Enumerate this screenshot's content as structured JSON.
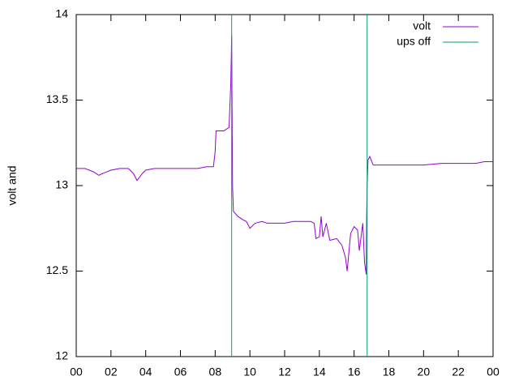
{
  "chart_data": {
    "type": "line",
    "ylabel": "volt and",
    "xlim": [
      0,
      24
    ],
    "xticks": [
      {
        "value": 0,
        "label": "00"
      },
      {
        "value": 2,
        "label": "02"
      },
      {
        "value": 4,
        "label": "04"
      },
      {
        "value": 6,
        "label": "06"
      },
      {
        "value": 8,
        "label": "08"
      },
      10,
      12,
      14,
      16,
      18,
      20,
      22,
      {
        "value": 24,
        "label": "00"
      }
    ],
    "ylim": [
      12,
      14
    ],
    "yticks": [
      12,
      12.5,
      13,
      13.5,
      14
    ],
    "legend": "top-right",
    "series": [
      {
        "name": "volt",
        "color": "#9400d3",
        "style": "lines",
        "x": [
          0,
          0.5,
          1.0,
          1.3,
          1.5,
          2.0,
          2.5,
          3.0,
          3.3,
          3.5,
          3.8,
          4.0,
          4.5,
          5.0,
          5.5,
          6.0,
          6.5,
          7.0,
          7.5,
          7.9,
          8.0,
          8.05,
          8.5,
          8.8,
          8.9,
          8.95,
          9.0,
          9.05,
          9.3,
          9.6,
          9.8,
          10.0,
          10.3,
          10.7,
          11.0,
          12.0,
          12.5,
          13.0,
          13.5,
          13.7,
          13.8,
          14.0,
          14.1,
          14.2,
          14.4,
          14.6,
          15.0,
          15.3,
          15.5,
          15.6,
          15.8,
          16.0,
          16.2,
          16.3,
          16.5,
          16.6,
          16.7,
          16.72,
          16.75,
          16.8,
          16.9,
          17.1,
          17.5,
          18.0,
          19.0,
          20.0,
          21.0,
          22.0,
          23.0,
          23.5,
          24.0
        ],
        "values": [
          13.1,
          13.1,
          13.08,
          13.06,
          13.07,
          13.09,
          13.1,
          13.1,
          13.07,
          13.03,
          13.07,
          13.09,
          13.1,
          13.1,
          13.1,
          13.1,
          13.1,
          13.1,
          13.11,
          13.11,
          13.2,
          13.32,
          13.32,
          13.34,
          13.6,
          13.88,
          13.0,
          12.85,
          12.82,
          12.8,
          12.79,
          12.75,
          12.78,
          12.79,
          12.78,
          12.78,
          12.79,
          12.79,
          12.79,
          12.78,
          12.69,
          12.7,
          12.82,
          12.7,
          12.78,
          12.68,
          12.69,
          12.65,
          12.58,
          12.5,
          12.72,
          12.76,
          12.74,
          12.62,
          12.78,
          12.55,
          12.48,
          12.8,
          13.0,
          13.15,
          13.17,
          13.12,
          13.12,
          13.12,
          13.12,
          13.12,
          13.13,
          13.13,
          13.13,
          13.14,
          13.14
        ]
      },
      {
        "name": "ups off",
        "color": "#009e73",
        "style": "impulses",
        "x": [
          8.95,
          16.75
        ],
        "values": [
          14,
          14
        ]
      }
    ]
  }
}
